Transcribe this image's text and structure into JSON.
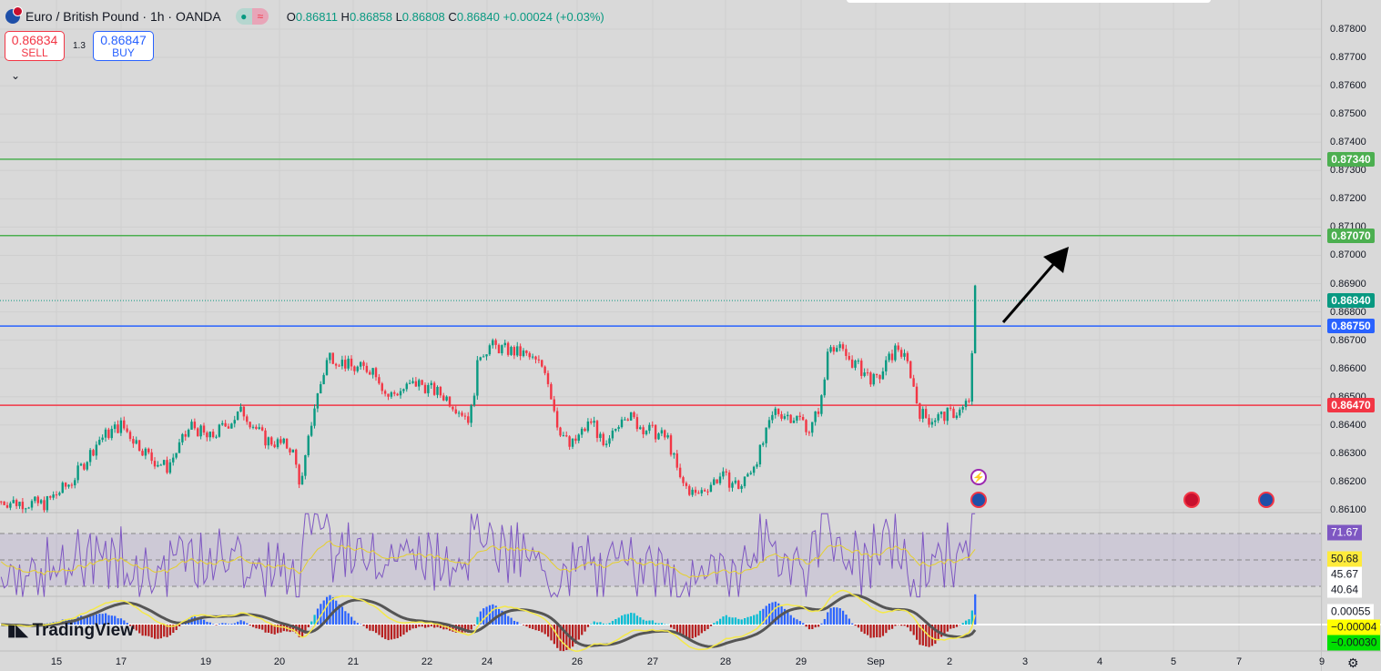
{
  "header": {
    "symbol": "Euro / British Pound · 1h · OANDA",
    "open_label": "O",
    "open": "0.86811",
    "high_label": "H",
    "high": "0.86858",
    "low_label": "L",
    "low": "0.86808",
    "close_label": "C",
    "close": "0.86840",
    "change": "+0.00024 (+0.03%)"
  },
  "trade": {
    "sell_price": "0.86834",
    "sell_label": "SELL",
    "spread": "1.3",
    "buy_price": "0.86847",
    "buy_label": "BUY"
  },
  "price_axis": {
    "ticks": [
      "0.87800",
      "0.87700",
      "0.87600",
      "0.87500",
      "0.87400",
      "0.87300",
      "0.87200",
      "0.87100",
      "0.87000",
      "0.86900",
      "0.86800",
      "0.86700",
      "0.86600",
      "0.86500",
      "0.86400",
      "0.86300",
      "0.86200",
      "0.86100"
    ]
  },
  "levels": [
    {
      "price": "0.87340",
      "color": "#4caf50"
    },
    {
      "price": "0.87070",
      "color": "#4caf50"
    },
    {
      "price": "0.86840",
      "color": "#089981"
    },
    {
      "price": "0.86750",
      "color": "#2962ff"
    },
    {
      "price": "0.86470",
      "color": "#f23645"
    }
  ],
  "indicator_labels": [
    {
      "value": "71.67",
      "bg": "#7e57c2",
      "fg": "#ffffff"
    },
    {
      "value": "50.68",
      "bg": "#ffeb3b",
      "fg": "#131722"
    },
    {
      "value": "45.67",
      "bg": "#ffffff",
      "fg": "#131722"
    },
    {
      "value": "40.64",
      "bg": "#ffffff",
      "fg": "#131722"
    },
    {
      "value": "0.00055",
      "bg": "#ffffff",
      "fg": "#131722"
    },
    {
      "value": "−0.00004",
      "bg": "#ffff00",
      "fg": "#131722"
    },
    {
      "value": "−0.00030",
      "bg": "#00e000",
      "fg": "#131722"
    }
  ],
  "time_axis": [
    "15",
    "17",
    "19",
    "20",
    "21",
    "22",
    "24",
    "26",
    "27",
    "28",
    "29",
    "Sep",
    "2",
    "3",
    "4",
    "5",
    "7",
    "9"
  ],
  "logo": "TradingView",
  "colors": {
    "up": "#089981",
    "down": "#f23645",
    "rsi": "#7e57c2"
  },
  "chart_data": {
    "type": "candlestick",
    "ylim": [
      0.861,
      0.878
    ],
    "price_path": [
      [
        "14 06",
        0.8613
      ],
      [
        "14 20",
        0.8612
      ],
      [
        "15 05",
        0.862
      ],
      [
        "15 14",
        0.8635
      ],
      [
        "17 00",
        0.864
      ],
      [
        "17 10",
        0.8628
      ],
      [
        "17 15",
        0.8625
      ],
      [
        "17 23",
        0.864
      ],
      [
        "19 01",
        0.8635
      ],
      [
        "19 12",
        0.8645
      ],
      [
        "19 19",
        0.8635
      ],
      [
        "20 04",
        0.8632
      ],
      [
        "20 07",
        0.8618
      ],
      [
        "20 11",
        0.8645
      ],
      [
        "20 16",
        0.8665
      ],
      [
        "21 00",
        0.866
      ],
      [
        "21 07",
        0.866
      ],
      [
        "21 11",
        0.865
      ],
      [
        "21 21",
        0.8655
      ],
      [
        "22 06",
        0.865
      ],
      [
        "22 14",
        0.8642
      ],
      [
        "22 17",
        0.8665
      ],
      [
        "24 01",
        0.8668
      ],
      [
        "24 12",
        0.8665
      ],
      [
        "24 19",
        0.866
      ],
      [
        "24 23",
        0.864
      ],
      [
        "24 27",
        0.8632
      ],
      [
        "26 05",
        0.8642
      ],
      [
        "26 09",
        0.863
      ],
      [
        "26 15",
        0.8645
      ],
      [
        "26 20",
        0.864
      ],
      [
        "27 05",
        0.8635
      ],
      [
        "27 09",
        0.862
      ],
      [
        "27 14",
        0.8615
      ],
      [
        "27 22",
        0.8622
      ],
      [
        "28 05",
        0.8618
      ],
      [
        "28 11",
        0.863
      ],
      [
        "28 16",
        0.8645
      ],
      [
        "29 00",
        0.8642
      ],
      [
        "29 03",
        0.8638
      ],
      [
        "29 07",
        0.865
      ],
      [
        "29 09",
        0.867
      ],
      [
        "29 16",
        0.8663
      ],
      [
        "Sep 00",
        0.8655
      ],
      [
        "Sep 07",
        0.8668
      ],
      [
        "Sep 11",
        0.866
      ],
      [
        "Sep 14",
        0.8645
      ],
      [
        "Sep 17",
        0.8642
      ],
      [
        "2 04",
        0.8645
      ],
      [
        "2 07",
        0.865
      ],
      [
        "2 08",
        0.869
      ],
      [
        "2 09",
        0.8684
      ]
    ]
  }
}
